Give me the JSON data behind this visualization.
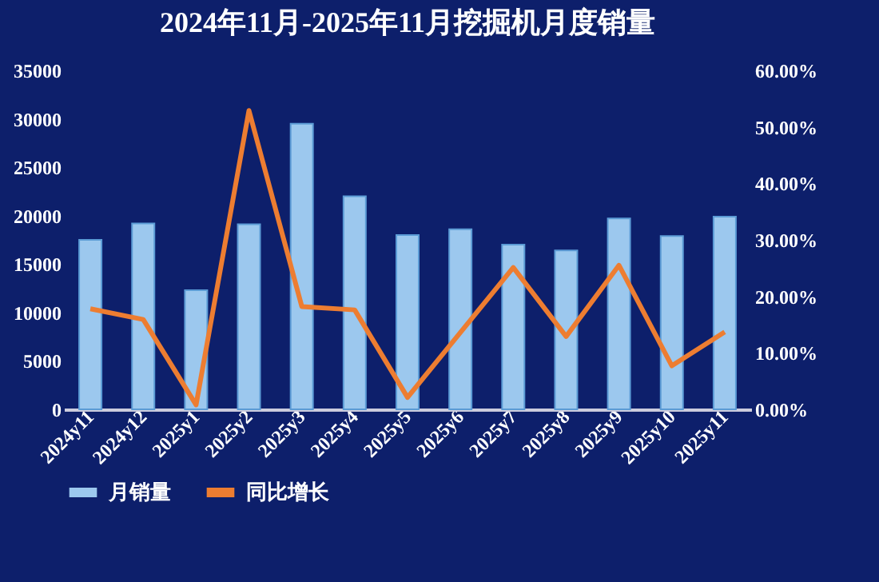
{
  "chart_data": {
    "type": "bar",
    "title": "2024年11月-2025年11月挖掘机月度销量",
    "categories": [
      "2024y11",
      "2024y12",
      "2025y1",
      "2025y2",
      "2025y3",
      "2025y4",
      "2025y5",
      "2025y6",
      "2025y7",
      "2025y8",
      "2025y9",
      "2025y10",
      "2025y11"
    ],
    "series": [
      {
        "name": "月销量",
        "color": "#9cc8ee",
        "values": [
          17500,
          19200,
          12300,
          19100,
          29500,
          22000,
          18000,
          18600,
          17000,
          16400,
          19700,
          17900,
          19900
        ]
      },
      {
        "name": "同比增长",
        "type": "line",
        "axis": "y2",
        "color": "#ed7d31",
        "values": [
          17.8,
          15.9,
          0.8,
          52.9,
          18.2,
          17.6,
          2.1,
          13.6,
          25.1,
          12.9,
          25.5,
          7.7,
          13.7
        ]
      }
    ],
    "ylim": [
      0,
      35000
    ],
    "yticks": [
      0,
      5000,
      10000,
      15000,
      20000,
      25000,
      30000,
      35000
    ],
    "y2lim": [
      0,
      60
    ],
    "y2ticks": [
      {
        "value": 0,
        "label": "0.00%"
      },
      {
        "value": 10,
        "label": "10.00%"
      },
      {
        "value": 20,
        "label": "20.00%"
      },
      {
        "value": 30,
        "label": "30.00%"
      },
      {
        "value": 40,
        "label": "40.00%"
      },
      {
        "value": 50,
        "label": "50.00%"
      },
      {
        "value": 60,
        "label": "60.00%"
      }
    ],
    "grid": false,
    "legend": "bottom"
  }
}
